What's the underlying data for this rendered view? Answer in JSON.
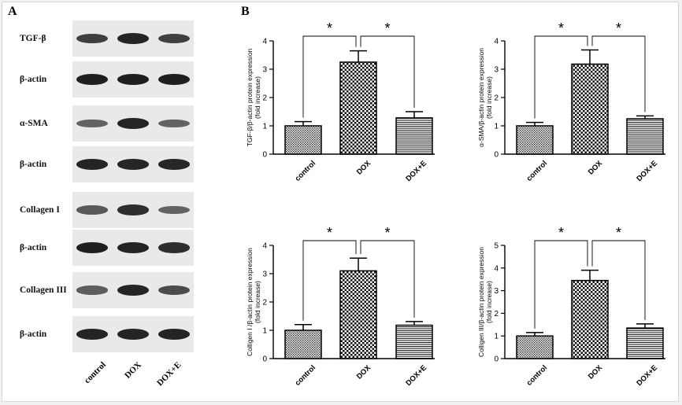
{
  "panels": {
    "a_label": "A",
    "b_label": "B"
  },
  "blots": {
    "rows": [
      {
        "label": "TGF-β",
        "intensities": [
          0.78,
          0.95,
          0.76
        ]
      },
      {
        "label": "β-actin",
        "intensities": [
          0.98,
          0.98,
          0.98
        ]
      },
      {
        "label": "α-SMA",
        "intensities": [
          0.55,
          0.95,
          0.55
        ]
      },
      {
        "label": "β-actin",
        "intensities": [
          0.95,
          0.93,
          0.92
        ]
      },
      {
        "label": "Collagen I",
        "intensities": [
          0.6,
          0.88,
          0.55
        ]
      },
      {
        "label": "β-actin",
        "intensities": [
          0.97,
          0.95,
          0.88
        ]
      },
      {
        "label": "Collagen III",
        "intensities": [
          0.58,
          0.95,
          0.7
        ]
      },
      {
        "label": "β-actin",
        "intensities": [
          0.95,
          0.95,
          0.95
        ]
      }
    ],
    "lanes": [
      "control",
      "DOX",
      "DOX+E"
    ]
  },
  "chart_data": [
    {
      "type": "bar",
      "ylabel": "TGF-β/β-actin protein expression",
      "ylabel2": "(fold increase)",
      "categories": [
        "control",
        "DOX",
        "DOX+E"
      ],
      "values": [
        1.0,
        3.25,
        1.28
      ],
      "errors": [
        0.15,
        0.4,
        0.22
      ],
      "ylim": [
        0,
        4
      ],
      "yticks": [
        "0",
        "1",
        "2",
        "3",
        "4"
      ],
      "significance": [
        "*",
        "*"
      ]
    },
    {
      "type": "bar",
      "ylabel": "α-SMA/β-actin protein expression",
      "ylabel2": "(fold increase)",
      "categories": [
        "control",
        "DOX",
        "DOX+E"
      ],
      "values": [
        1.0,
        3.18,
        1.25
      ],
      "errors": [
        0.12,
        0.5,
        0.1
      ],
      "ylim": [
        0,
        4
      ],
      "yticks": [
        "0",
        "1",
        "2",
        "3",
        "4"
      ],
      "significance": [
        "*",
        "*"
      ]
    },
    {
      "type": "bar",
      "ylabel": "Colligen I /β-actin protein expression",
      "ylabel2": "(fold increase)",
      "categories": [
        "control",
        "DOX",
        "DOX+E"
      ],
      "values": [
        1.0,
        3.1,
        1.18
      ],
      "errors": [
        0.2,
        0.45,
        0.13
      ],
      "ylim": [
        0,
        4
      ],
      "yticks": [
        "0",
        "1",
        "2",
        "3",
        "4"
      ],
      "significance": [
        "*",
        "*"
      ]
    },
    {
      "type": "bar",
      "ylabel": "Colligen III/β-actin protein expression",
      "ylabel2": "(fold increase)",
      "categories": [
        "control",
        "DOX",
        "DOX+E"
      ],
      "values": [
        1.0,
        3.45,
        1.35
      ],
      "errors": [
        0.15,
        0.45,
        0.18
      ],
      "ylim": [
        0,
        5
      ],
      "yticks": [
        "0",
        "1",
        "2",
        "3",
        "4",
        "5"
      ],
      "significance": [
        "*",
        "*"
      ]
    }
  ]
}
